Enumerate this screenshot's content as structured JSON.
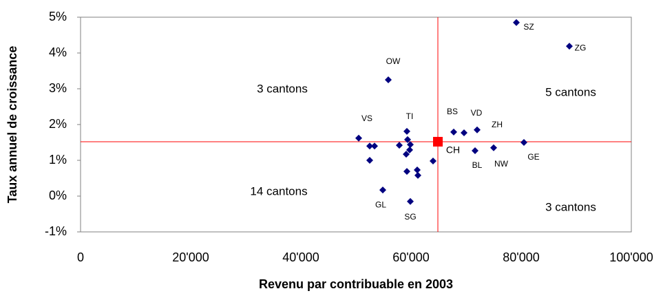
{
  "chart_data": {
    "type": "scatter",
    "xlabel": "Revenu par contribuable en 2003",
    "ylabel": "Taux annuel de croissance",
    "xlim": [
      0,
      100000
    ],
    "ylim": [
      -1,
      5
    ],
    "xticks": [
      0,
      {
        "value": 20000,
        "label": "20'000"
      },
      {
        "value": 40000,
        "label": "40'000"
      },
      {
        "value": 60000,
        "label": "60'000"
      },
      {
        "value": 80000,
        "label": "80'000"
      },
      {
        "value": 100000,
        "label": "100'000"
      }
    ],
    "yticks": [
      {
        "value": -1,
        "label": "-1%"
      },
      {
        "value": 0,
        "label": "0%"
      },
      {
        "value": 1,
        "label": "1%"
      },
      {
        "value": 2,
        "label": "2%"
      },
      {
        "value": 3,
        "label": "3%"
      },
      {
        "value": 4,
        "label": "4%"
      },
      {
        "value": 5,
        "label": "5%"
      }
    ],
    "series": [
      {
        "color": "#000080",
        "marker": "diamond",
        "x": [
          79125,
          88750,
          55875,
          50500,
          52500,
          53375,
          52500,
          57875,
          59250,
          59375,
          59875,
          59125,
          59750,
          59250,
          61125,
          61250,
          64000,
          54875,
          59875,
          67750,
          69625,
          72000,
          71625,
          75000,
          80500
        ],
        "values": [
          4.85,
          4.19,
          3.25,
          1.62,
          1.4,
          1.4,
          1.0,
          1.42,
          1.81,
          1.58,
          1.44,
          1.17,
          1.29,
          0.69,
          0.73,
          0.58,
          0.98,
          0.17,
          -0.15,
          1.79,
          1.77,
          1.85,
          1.27,
          1.35,
          1.5
        ],
        "labels": [
          "SZ",
          "ZG",
          "OW",
          "VS",
          null,
          null,
          null,
          null,
          "TI",
          null,
          null,
          null,
          null,
          null,
          null,
          null,
          null,
          "GL",
          "SG",
          "BS",
          "VD",
          "ZH",
          "BL",
          "NW",
          "GE"
        ]
      },
      {
        "color": "#ff0000",
        "marker": "square",
        "x": [
          64875
        ],
        "values": [
          1.52
        ],
        "labels": [
          "CH"
        ]
      }
    ],
    "annotations": [
      "3 cantons",
      "5 cantons",
      "14 cantons",
      "3 cantons"
    ]
  }
}
